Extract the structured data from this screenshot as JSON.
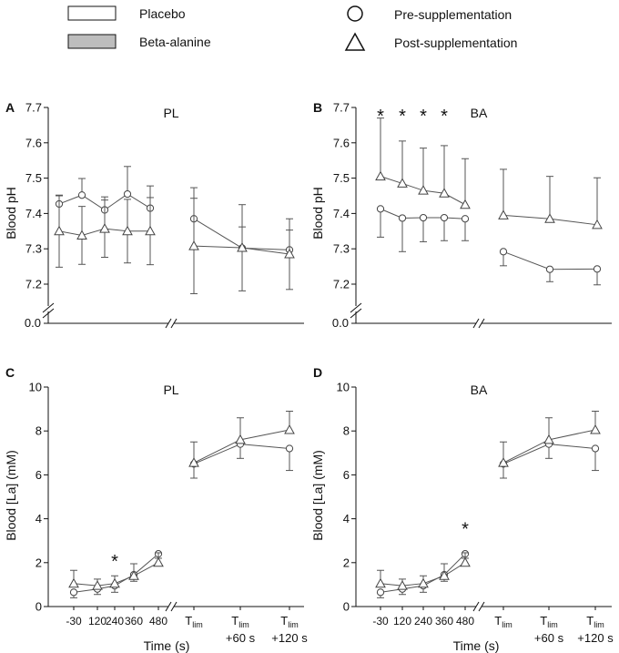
{
  "legend": {
    "placebo": "Placebo",
    "beta_alanine": "Beta-alanine",
    "pre": "Pre-supplementation",
    "post": "Post-supplementation"
  },
  "colors": {
    "axis": "#111111",
    "placebo_fill": "#ffffff",
    "beta_alanine_fill": "#bdbdbd",
    "marker_fill": "#ffffff",
    "line": "#555555"
  },
  "chart_data": [
    {
      "type": "line",
      "panel": "A",
      "title": "PL",
      "ylabel": "Blood pH",
      "xlabel": "",
      "ylim": [
        7.15,
        7.7
      ],
      "y_break": true,
      "y_ticks": [
        "7.2",
        "7.3",
        "7.4",
        "7.5",
        "7.6",
        "7.7"
      ],
      "y_zero_label": "0.0",
      "series": [
        {
          "name": "Pre-supplementation",
          "marker": "circle",
          "exercise": [
            {
              "y": 7.427,
              "err": 0.023
            },
            {
              "y": 7.452,
              "err": 0.047
            },
            {
              "y": 7.41,
              "err": 0.037
            },
            {
              "y": 7.455,
              "err": 0.078
            },
            {
              "y": 7.415,
              "err": 0.063
            }
          ],
          "recovery": [
            {
              "y": 7.385,
              "err": 0.088
            },
            {
              "y": 7.302,
              "err": 0.06
            },
            {
              "y": 7.297,
              "err": 0.056
            }
          ]
        },
        {
          "name": "Post-supplementation",
          "marker": "triangle",
          "exercise": [
            {
              "y": 7.35,
              "err": 0.102
            },
            {
              "y": 7.338,
              "err": 0.082
            },
            {
              "y": 7.357,
              "err": 0.081
            },
            {
              "y": 7.35,
              "err": 0.09
            },
            {
              "y": 7.35,
              "err": 0.095
            }
          ],
          "recovery": [
            {
              "y": 7.308,
              "err": 0.135
            },
            {
              "y": 7.303,
              "err": 0.122
            },
            {
              "y": 7.285,
              "err": 0.1
            }
          ]
        }
      ],
      "significance": []
    },
    {
      "type": "line",
      "panel": "B",
      "title": "BA",
      "ylabel": "Blood pH",
      "xlabel": "",
      "ylim": [
        7.15,
        7.7
      ],
      "y_break": true,
      "y_ticks": [
        "7.2",
        "7.3",
        "7.4",
        "7.5",
        "7.6",
        "7.7"
      ],
      "y_zero_label": "0.0",
      "series": [
        {
          "name": "Pre-supplementation",
          "marker": "circle",
          "exercise": [
            {
              "y": 7.413,
              "err": 0.08
            },
            {
              "y": 7.387,
              "err": 0.095
            },
            {
              "y": 7.388,
              "err": 0.068
            },
            {
              "y": 7.388,
              "err": 0.065
            },
            {
              "y": 7.385,
              "err": 0.062
            }
          ],
          "recovery": [
            {
              "y": 7.292,
              "err": 0.04
            },
            {
              "y": 7.242,
              "err": 0.035
            },
            {
              "y": 7.243,
              "err": 0.045
            }
          ]
        },
        {
          "name": "Post-supplementation",
          "marker": "triangle",
          "exercise": [
            {
              "y": 7.505,
              "err": 0.165
            },
            {
              "y": 7.485,
              "err": 0.12
            },
            {
              "y": 7.465,
              "err": 0.12
            },
            {
              "y": 7.457,
              "err": 0.135
            },
            {
              "y": 7.425,
              "err": 0.13
            }
          ],
          "recovery": [
            {
              "y": 7.395,
              "err": 0.13
            },
            {
              "y": 7.385,
              "err": 0.12
            },
            {
              "y": 7.368,
              "err": 0.133
            }
          ]
        }
      ],
      "significance": [
        {
          "x_index": 0,
          "label": "*"
        },
        {
          "x_index": 1,
          "label": "*"
        },
        {
          "x_index": 2,
          "label": "*"
        },
        {
          "x_index": 3,
          "label": "*"
        }
      ]
    },
    {
      "type": "line",
      "panel": "C",
      "title": "PL",
      "ylabel": "Blood [La] (mM)",
      "xlabel": "Time (s)",
      "ylim": [
        0,
        10
      ],
      "y_break": false,
      "y_ticks": [
        "0",
        "2",
        "4",
        "6",
        "8",
        "10"
      ],
      "series": [
        {
          "name": "Pre-supplementation",
          "marker": "circle",
          "exercise": [
            {
              "y": 0.65,
              "err": 0.25
            },
            {
              "y": 0.8,
              "err": 0.25
            },
            {
              "y": 0.95,
              "err": 0.3
            },
            {
              "y": 1.45,
              "err": 0.3
            },
            {
              "y": 2.4,
              "err": 0.2
            }
          ],
          "recovery": [
            {
              "y": 6.5,
              "err": 0.65
            },
            {
              "y": 7.4,
              "err": 0.65
            },
            {
              "y": 7.2,
              "err": 1.0
            }
          ]
        },
        {
          "name": "Post-supplementation",
          "marker": "triangle",
          "exercise": [
            {
              "y": 1.05,
              "err": 0.6
            },
            {
              "y": 0.95,
              "err": 0.3
            },
            {
              "y": 1.05,
              "err": 0.35
            },
            {
              "y": 1.4,
              "err": 0.55
            },
            {
              "y": 2.0,
              "err": 0.45
            }
          ],
          "recovery": [
            {
              "y": 6.55,
              "err": 0.95
            },
            {
              "y": 7.6,
              "err": 1.0
            },
            {
              "y": 8.05,
              "err": 0.85
            }
          ]
        }
      ],
      "significance": [
        {
          "x_index": 2,
          "label": "*"
        }
      ]
    },
    {
      "type": "line",
      "panel": "D",
      "title": "BA",
      "ylabel": "Blood [La] (mM)",
      "xlabel": "Time (s)",
      "ylim": [
        0,
        10
      ],
      "y_break": false,
      "y_ticks": [
        "0",
        "2",
        "4",
        "6",
        "8",
        "10"
      ],
      "series": [
        {
          "name": "Pre-supplementation",
          "marker": "circle",
          "exercise": [
            {
              "y": 0.65,
              "err": 0.25
            },
            {
              "y": 0.8,
              "err": 0.25
            },
            {
              "y": 0.95,
              "err": 0.3
            },
            {
              "y": 1.45,
              "err": 0.3
            },
            {
              "y": 2.4,
              "err": 0.2
            }
          ],
          "recovery": [
            {
              "y": 6.5,
              "err": 0.65
            },
            {
              "y": 7.4,
              "err": 0.65
            },
            {
              "y": 7.2,
              "err": 1.0
            }
          ]
        },
        {
          "name": "Post-supplementation",
          "marker": "triangle",
          "exercise": [
            {
              "y": 1.05,
              "err": 0.6
            },
            {
              "y": 0.95,
              "err": 0.3
            },
            {
              "y": 1.05,
              "err": 0.35
            },
            {
              "y": 1.4,
              "err": 0.55
            },
            {
              "y": 2.0,
              "err": 0.45
            }
          ],
          "recovery": [
            {
              "y": 6.55,
              "err": 0.95
            },
            {
              "y": 7.6,
              "err": 1.0
            },
            {
              "y": 8.05,
              "err": 0.85
            }
          ]
        }
      ],
      "significance": [
        {
          "x_index": 4,
          "label": "*"
        }
      ]
    }
  ],
  "x_axis": {
    "exercise_ticks": [
      "-30",
      "120",
      "240",
      "360",
      "480"
    ],
    "recovery_ticks": [
      {
        "main": "T",
        "sub": "lim",
        "extra": ""
      },
      {
        "main": "T",
        "sub": "lim",
        "extra": "+60 s"
      },
      {
        "main": "T",
        "sub": "lim",
        "extra": "+120 s"
      }
    ]
  }
}
